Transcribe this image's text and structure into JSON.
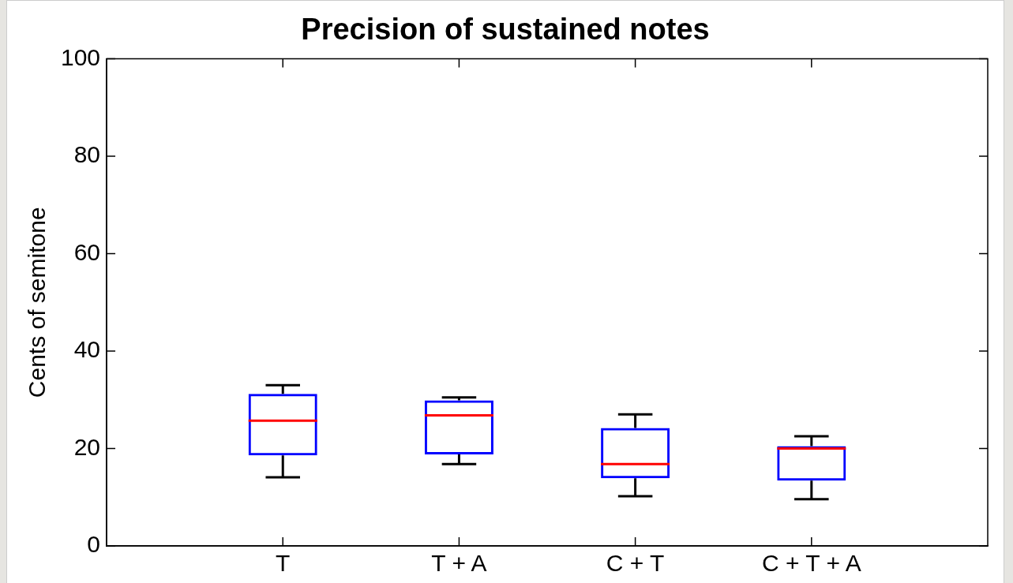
{
  "chart_data": {
    "type": "box",
    "title": "Precision of sustained notes",
    "ylabel": "Cents of semitone",
    "categories": [
      "T",
      "T + A",
      "C + T",
      "C + T + A"
    ],
    "series": [
      {
        "color": "#0000ff",
        "boxes": [
          {
            "low": 14.1,
            "q1": 18.6,
            "median": 25.7,
            "q3": 31.2,
            "high": 33
          },
          {
            "low": 16.8,
            "q1": 18.8,
            "median": 26.8,
            "q3": 29.9,
            "high": 30.5
          },
          {
            "low": 10.2,
            "q1": 13.9,
            "median": 16.8,
            "q3": 24.2,
            "high": 27
          },
          {
            "low": 9.6,
            "q1": 13.4,
            "median": 20,
            "q3": 20.5,
            "high": 22.5
          }
        ]
      }
    ],
    "ylim": [
      0,
      100
    ],
    "yticks": [
      0,
      20,
      40,
      60,
      80,
      100
    ],
    "grid": false,
    "legend": false
  }
}
